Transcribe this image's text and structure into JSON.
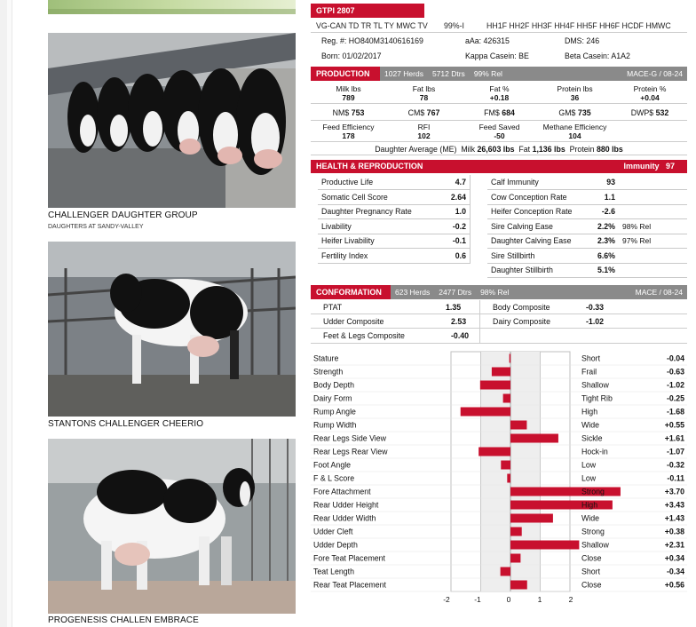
{
  "photos": [
    {
      "caption": "CHALLENGER DAUGHTER GROUP",
      "subcaption": "DAUGHTERS AT SANDY-VALLEY"
    },
    {
      "caption": "STANTONS CHALLENGER CHEERIO",
      "subcaption": ""
    },
    {
      "caption": "PROGENESIS CHALLEN EMBRACE",
      "subcaption": ""
    }
  ],
  "header": {
    "gtpi": "GTPI 2807",
    "codes": "VG-CAN TD TR TL TY MWC TV",
    "pct": "99%-I",
    "haplotypes": "HH1F HH2F HH3F HH4F HH5F HH6F HCDF HMWC",
    "reg": "Reg. #: HO840M3140616169",
    "aaa": "aAa: 426315",
    "dms": "DMS: 246",
    "born": "Born: 01/02/2017",
    "kappa": "Kappa Casein: BE",
    "beta": "Beta Casein: A1A2"
  },
  "production": {
    "title": "PRODUCTION",
    "herds": "1027 Herds",
    "dtrs": "5712 Dtrs",
    "rel": "99% Rel",
    "source": "MACE-G / 08-24",
    "row1": [
      {
        "label": "Milk lbs",
        "value": "789"
      },
      {
        "label": "Fat lbs",
        "value": "78"
      },
      {
        "label": "Fat %",
        "value": "+0.18"
      },
      {
        "label": "Protein lbs",
        "value": "36"
      },
      {
        "label": "Protein %",
        "value": "+0.04"
      }
    ],
    "row2": [
      {
        "label": "NM$",
        "value": "753"
      },
      {
        "label": "CM$",
        "value": "767"
      },
      {
        "label": "FM$",
        "value": "684"
      },
      {
        "label": "GM$",
        "value": "735"
      },
      {
        "label": "DWP$",
        "value": "532"
      }
    ],
    "row3": [
      {
        "label": "Feed Efficiency",
        "value": "178"
      },
      {
        "label": "RFI",
        "value": "102"
      },
      {
        "label": "Feed Saved",
        "value": "-50"
      },
      {
        "label": "Methane Efficiency",
        "value": "104"
      }
    ],
    "daughter_avg_label": "Daughter Average (ME)",
    "milk_label": "Milk",
    "milk_value": "26,603 lbs",
    "fat_label": "Fat",
    "fat_value": "1,136 lbs",
    "protein_label": "Protein",
    "protein_value": "880 lbs"
  },
  "health": {
    "title": "HEALTH & REPRODUCTION",
    "immunity_label": "Immunity",
    "immunity_value": "97",
    "left": [
      {
        "label": "Productive Life",
        "value": "4.7"
      },
      {
        "label": "Somatic Cell Score",
        "value": "2.64"
      },
      {
        "label": "Daughter Pregnancy Rate",
        "value": "1.0"
      },
      {
        "label": "Livability",
        "value": "-0.2"
      },
      {
        "label": "Heifer Livability",
        "value": "-0.1"
      },
      {
        "label": "Fertility Index",
        "value": "0.6"
      }
    ],
    "right": [
      {
        "label": "Calf Immunity",
        "value": "93",
        "rel": ""
      },
      {
        "label": "Cow Conception Rate",
        "value": "1.1",
        "rel": ""
      },
      {
        "label": "Heifer Conception Rate",
        "value": "-2.6",
        "rel": ""
      },
      {
        "label": "Sire Calving Ease",
        "value": "2.2%",
        "rel": "98% Rel"
      },
      {
        "label": "Daughter Calving Ease",
        "value": "2.3%",
        "rel": "97% Rel"
      },
      {
        "label": "Sire Stillbirth",
        "value": "6.6%",
        "rel": ""
      },
      {
        "label": "Daughter Stillbirth",
        "value": "5.1%",
        "rel": ""
      }
    ]
  },
  "conformation": {
    "title": "CONFORMATION",
    "herds": "623 Herds",
    "dtrs": "2477 Dtrs",
    "rel": "98% Rel",
    "source": "MACE / 08-24",
    "ptat_label": "PTAT",
    "ptat_value": "1.35",
    "udder_label": "Udder Composite",
    "udder_value": "2.53",
    "fl_label": "Feet & Legs Composite",
    "fl_value": "-0.40",
    "body_label": "Body Composite",
    "body_value": "-0.33",
    "dairy_label": "Dairy Composite",
    "dairy_value": "-1.02"
  },
  "chart_data": {
    "type": "bar",
    "orientation": "horizontal",
    "categories": [
      "Stature",
      "Strength",
      "Body Depth",
      "Dairy Form",
      "Rump Angle",
      "Rump Width",
      "Rear Legs Side View",
      "Rear Legs Rear View",
      "Foot Angle",
      "F & L Score",
      "Fore Attachment",
      "Rear Udder Height",
      "Rear Udder Width",
      "Udder Cleft",
      "Udder Depth",
      "Fore Teat Placement",
      "Teat Length",
      "Rear Teat Placement"
    ],
    "values": [
      -0.04,
      -0.63,
      -1.02,
      -0.25,
      -1.68,
      0.55,
      1.61,
      -1.07,
      -0.32,
      -0.11,
      3.7,
      3.43,
      1.43,
      0.38,
      2.31,
      0.34,
      -0.34,
      0.56
    ],
    "opposite_labels": [
      "Short",
      "Frail",
      "Shallow",
      "Tight Rib",
      "High",
      "Wide",
      "Sickle",
      "Hock-in",
      "Low",
      "Low",
      "Strong",
      "High",
      "Wide",
      "Strong",
      "Shallow",
      "Close",
      "Short",
      "Close"
    ],
    "value_labels": [
      "-0.04",
      "-0.63",
      "-1.02",
      "-0.25",
      "-1.68",
      "+0.55",
      "+1.61",
      "-1.07",
      "-0.32",
      "-0.11",
      "+3.70",
      "+3.43",
      "+1.43",
      "+0.38",
      "+2.31",
      "+0.34",
      "-0.34",
      "+0.56"
    ],
    "xlim": [
      -2,
      2
    ],
    "xticks": [
      "-2",
      "-1",
      "0",
      "1",
      "2"
    ],
    "bar_color": "#c8102e"
  },
  "colors": {
    "accent": "#c8102e",
    "grey": "#8a8a8a"
  }
}
